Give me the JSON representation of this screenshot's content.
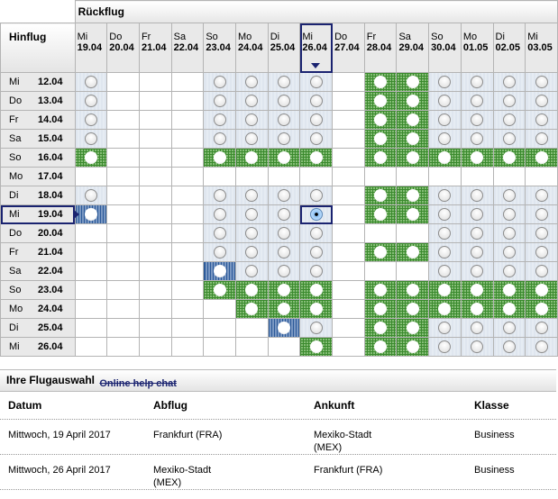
{
  "grid": {
    "outbound_label": "Hinflug",
    "return_label": "Rückflug",
    "return_dates": [
      {
        "day": "Mi",
        "date": "19.04"
      },
      {
        "day": "Do",
        "date": "20.04"
      },
      {
        "day": "Fr",
        "date": "21.04"
      },
      {
        "day": "Sa",
        "date": "22.04"
      },
      {
        "day": "So",
        "date": "23.04"
      },
      {
        "day": "Mo",
        "date": "24.04"
      },
      {
        "day": "Di",
        "date": "25.04"
      },
      {
        "day": "Mi",
        "date": "26.04"
      },
      {
        "day": "Do",
        "date": "27.04"
      },
      {
        "day": "Fr",
        "date": "28.04"
      },
      {
        "day": "Sa",
        "date": "29.04"
      },
      {
        "day": "So",
        "date": "30.04"
      },
      {
        "day": "Mo",
        "date": "01.05"
      },
      {
        "day": "Di",
        "date": "02.05"
      },
      {
        "day": "Mi",
        "date": "03.05"
      }
    ],
    "selected_return_index": 7,
    "selected_outbound_index": 7,
    "cell_legend": {
      "e": "no-flight",
      "o": "available",
      "g": "highlighted-fare",
      "b": "outbound-marked",
      "s": "selected"
    },
    "rows": [
      {
        "day": "Mi",
        "date": "12.04",
        "cells": [
          "o",
          "e",
          "e",
          "e",
          "o",
          "o",
          "o",
          "o",
          "e",
          "g",
          "g",
          "o",
          "o",
          "o",
          "o"
        ]
      },
      {
        "day": "Do",
        "date": "13.04",
        "cells": [
          "o",
          "e",
          "e",
          "e",
          "o",
          "o",
          "o",
          "o",
          "e",
          "g",
          "g",
          "o",
          "o",
          "o",
          "o"
        ]
      },
      {
        "day": "Fr",
        "date": "14.04",
        "cells": [
          "o",
          "e",
          "e",
          "e",
          "o",
          "o",
          "o",
          "o",
          "e",
          "g",
          "g",
          "o",
          "o",
          "o",
          "o"
        ]
      },
      {
        "day": "Sa",
        "date": "15.04",
        "cells": [
          "o",
          "e",
          "e",
          "e",
          "o",
          "o",
          "o",
          "o",
          "e",
          "g",
          "g",
          "o",
          "o",
          "o",
          "o"
        ]
      },
      {
        "day": "So",
        "date": "16.04",
        "cells": [
          "g",
          "e",
          "e",
          "e",
          "g",
          "g",
          "g",
          "g",
          "e",
          "g",
          "g",
          "g",
          "g",
          "g",
          "g"
        ]
      },
      {
        "day": "Mo",
        "date": "17.04",
        "cells": [
          "e",
          "e",
          "e",
          "e",
          "e",
          "e",
          "e",
          "e",
          "e",
          "e",
          "e",
          "e",
          "e",
          "e",
          "e"
        ]
      },
      {
        "day": "Di",
        "date": "18.04",
        "cells": [
          "o",
          "e",
          "e",
          "e",
          "o",
          "o",
          "o",
          "o",
          "e",
          "g",
          "g",
          "o",
          "o",
          "o",
          "o"
        ]
      },
      {
        "day": "Mi",
        "date": "19.04",
        "cells": [
          "b",
          "e",
          "e",
          "e",
          "o",
          "o",
          "o",
          "s",
          "e",
          "g",
          "g",
          "o",
          "o",
          "o",
          "o"
        ]
      },
      {
        "day": "Do",
        "date": "20.04",
        "cells": [
          "e",
          "e",
          "e",
          "e",
          "o",
          "o",
          "o",
          "o",
          "e",
          "e",
          "e",
          "o",
          "o",
          "o",
          "o"
        ]
      },
      {
        "day": "Fr",
        "date": "21.04",
        "cells": [
          "e",
          "e",
          "e",
          "e",
          "o",
          "o",
          "o",
          "o",
          "e",
          "g",
          "g",
          "o",
          "o",
          "o",
          "o"
        ]
      },
      {
        "day": "Sa",
        "date": "22.04",
        "cells": [
          "e",
          "e",
          "e",
          "e",
          "b",
          "o",
          "o",
          "o",
          "e",
          "e",
          "e",
          "o",
          "o",
          "o",
          "o"
        ]
      },
      {
        "day": "So",
        "date": "23.04",
        "cells": [
          "e",
          "e",
          "e",
          "e",
          "g",
          "g",
          "g",
          "g",
          "e",
          "g",
          "g",
          "g",
          "g",
          "g",
          "g"
        ]
      },
      {
        "day": "Mo",
        "date": "24.04",
        "cells": [
          "e",
          "e",
          "e",
          "e",
          "e",
          "g",
          "g",
          "g",
          "e",
          "g",
          "g",
          "g",
          "g",
          "g",
          "g"
        ]
      },
      {
        "day": "Di",
        "date": "25.04",
        "cells": [
          "e",
          "e",
          "e",
          "e",
          "e",
          "e",
          "b",
          "o",
          "e",
          "g",
          "g",
          "o",
          "o",
          "o",
          "o"
        ]
      },
      {
        "day": "Mi",
        "date": "26.04",
        "cells": [
          "e",
          "e",
          "e",
          "e",
          "e",
          "e",
          "e",
          "g",
          "e",
          "g",
          "g",
          "o",
          "o",
          "o",
          "o"
        ]
      }
    ]
  },
  "summary": {
    "title": "Ihre Flugauswahl",
    "help_link": "Online help chat",
    "headers": [
      "Datum",
      "Abflug",
      "Ankunft",
      "Klasse"
    ],
    "rows": [
      [
        "Mittwoch, 19 April 2017",
        "Frankfurt (FRA)",
        "Mexiko-Stadt (MEX)",
        "Business"
      ],
      [
        "Mittwoch, 26 April 2017",
        "Mexiko-Stadt (MEX)",
        "Frankfurt (FRA)",
        "Business"
      ]
    ]
  }
}
